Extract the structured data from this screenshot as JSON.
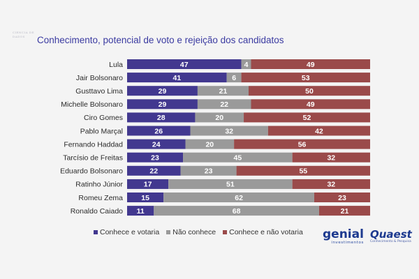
{
  "watermark_text": "CIENCIA DE DADOS",
  "colors": {
    "conhece_votaria": "#42388f",
    "nao_conhece": "#9a9a9a",
    "conhece_nao_votaria": "#9a4a4a",
    "title": "#3b3ba1",
    "background": "#f4f4f4"
  },
  "chart_data": {
    "type": "bar",
    "orientation": "horizontal",
    "stacked": true,
    "title": "Conhecimento, potencial de voto e rejeição dos candidatos",
    "categories": [
      "Lula",
      "Jair Bolsonaro",
      "Gusttavo Lima",
      "Michelle Bolsonaro",
      "Ciro Gomes",
      "Pablo Marçal",
      "Fernando Haddad",
      "Tarcísio de Freitas",
      "Eduardo Bolsonaro",
      "Ratinho Júnior",
      "Romeu Zema",
      "Ronaldo Caiado"
    ],
    "series": [
      {
        "name": "Conhece e votaria",
        "values": [
          47,
          41,
          29,
          29,
          28,
          26,
          24,
          23,
          22,
          17,
          15,
          11
        ]
      },
      {
        "name": "Não conhece",
        "values": [
          4,
          6,
          21,
          22,
          20,
          32,
          20,
          45,
          23,
          51,
          62,
          68
        ]
      },
      {
        "name": "Conhece e não votaria",
        "values": [
          49,
          53,
          50,
          49,
          52,
          42,
          56,
          32,
          55,
          32,
          23,
          21
        ]
      }
    ],
    "xlim": [
      0,
      100
    ],
    "legend_position": "bottom",
    "grid": false
  },
  "logos": {
    "genial": {
      "name": "genial",
      "sub": "investimentos"
    },
    "quaest": {
      "name": "Quaest",
      "sub": "Conhecimento & Pesquisa"
    }
  }
}
